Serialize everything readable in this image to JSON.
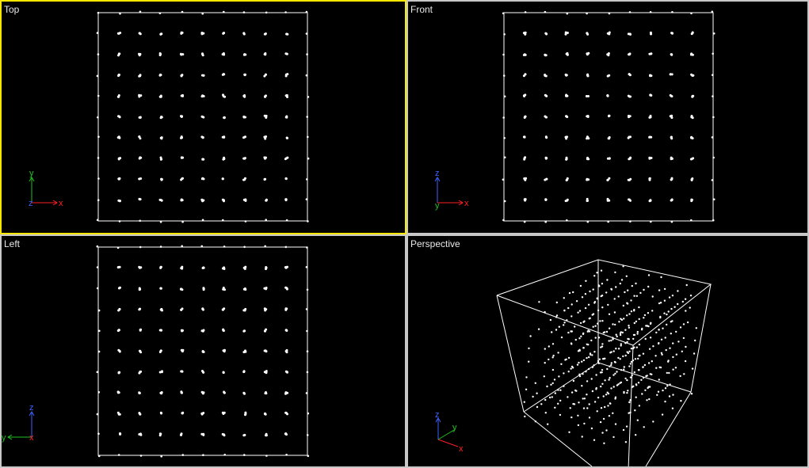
{
  "viewports": {
    "top": {
      "label": "Top",
      "active": true,
      "axes": {
        "h": "x",
        "v": "y",
        "center": "z"
      }
    },
    "front": {
      "label": "Front",
      "active": false,
      "axes": {
        "h": "x",
        "v": "z",
        "center": "y"
      }
    },
    "left": {
      "label": "Left",
      "active": false,
      "axes": {
        "h": "y",
        "v": "z",
        "center": "x"
      }
    },
    "perspective": {
      "label": "Perspective",
      "active": false,
      "axes": {
        "a": "x",
        "b": "y",
        "up": "z"
      }
    }
  },
  "scene": {
    "grid_points_per_side": 11,
    "point_color": "#ffffff",
    "frame_color": "#ffffff"
  },
  "colors": {
    "active_border": "#ffe800",
    "inactive_border": "#c8c8c8",
    "axis_x": "#ff2020",
    "axis_y": "#20c020",
    "axis_z": "#4060ff"
  }
}
